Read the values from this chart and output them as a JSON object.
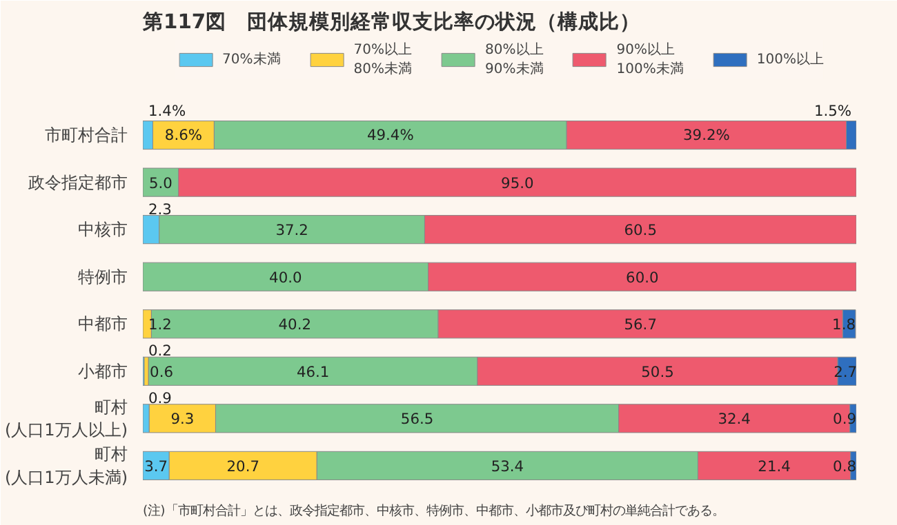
{
  "chart_data": {
    "type": "bar",
    "orientation": "horizontal",
    "stacked": true,
    "title": "第117図　団体規模別経常収支比率の状況（構成比）",
    "categories": [
      "市町村合計",
      "政令指定都市",
      "中核市",
      "特例市",
      "中都市",
      "小都市",
      "町村\n(人口1万人以上)",
      "町村\n(人口1万人未満)"
    ],
    "xlim": [
      0,
      100
    ],
    "tick_labels": "y",
    "legend": "top",
    "grid": false,
    "series": [
      {
        "name": "70%未満",
        "color": "#5bc8f0",
        "values": [
          1.4,
          null,
          2.3,
          null,
          null,
          0.2,
          0.9,
          3.7
        ],
        "value_labels": [
          "1.4%",
          null,
          "2.3",
          null,
          null,
          "0.2",
          "0.9",
          "3.7"
        ]
      },
      {
        "name": "70%以上\n80%未満",
        "color": "#ffd23f",
        "values": [
          8.6,
          null,
          null,
          null,
          1.2,
          0.6,
          9.3,
          20.7
        ],
        "value_labels": [
          "8.6%",
          null,
          null,
          null,
          "1.2",
          "0.6",
          "9.3",
          "20.7"
        ]
      },
      {
        "name": "80%以上\n90%未満",
        "color": "#7dc98f",
        "values": [
          49.4,
          5.0,
          37.2,
          40.0,
          40.2,
          46.1,
          56.5,
          53.4
        ],
        "value_labels": [
          "49.4%",
          "5.0",
          "37.2",
          "40.0",
          "40.2",
          "46.1",
          "56.5",
          "53.4"
        ]
      },
      {
        "name": "90%以上\n100%未満",
        "color": "#ee5a6e",
        "values": [
          39.2,
          95.0,
          60.5,
          60.0,
          56.7,
          50.5,
          32.4,
          21.4
        ],
        "value_labels": [
          "39.2%",
          "95.0",
          "60.5",
          "60.0",
          "56.7",
          "50.5",
          "32.4",
          "21.4"
        ]
      },
      {
        "name": "100%以上",
        "color": "#2f6fbf",
        "values": [
          1.5,
          null,
          null,
          null,
          1.8,
          2.7,
          0.9,
          0.8
        ],
        "value_labels": [
          "1.5%",
          null,
          null,
          null,
          "1.8",
          "2.7",
          "0.9",
          "0.8"
        ]
      }
    ],
    "annotations": [
      "(注)「市町村合計」とは、政令指定都市、中核市、特例市、中都市、小都市及び町村の単純合計である。"
    ]
  }
}
